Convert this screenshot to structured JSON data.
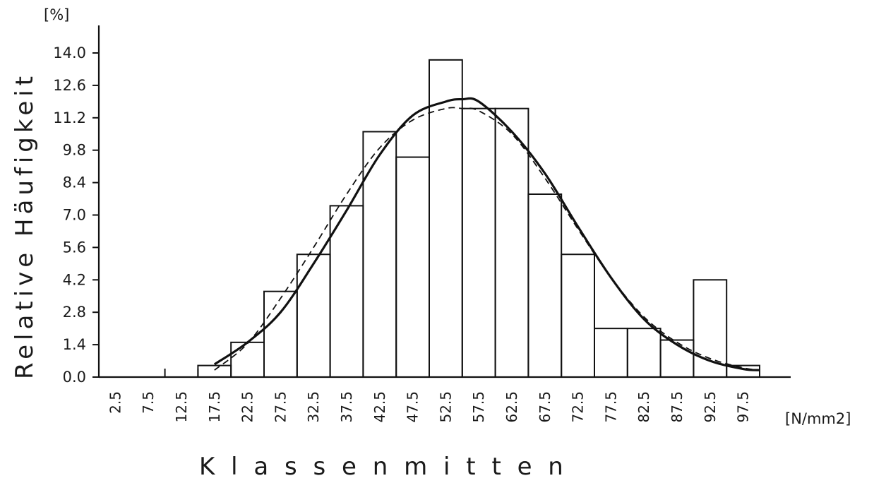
{
  "chart_data": {
    "type": "bar",
    "title": "",
    "xlabel": "K l a s s e n m i t t e n",
    "ylabel": "Relative Häufigkeit",
    "y_unit": "[%]",
    "x_unit": "[N/mm2]",
    "categories": [
      "2.5",
      "7.5",
      "12.5",
      "17.5",
      "22.5",
      "27.5",
      "32.5",
      "37.5",
      "42.5",
      "47.5",
      "52.5",
      "57.5",
      "62.5",
      "67.5",
      "72.5",
      "77.5",
      "82.5",
      "87.5",
      "92.5",
      "97.5"
    ],
    "values": [
      0.0,
      0.0,
      0.0,
      0.5,
      1.5,
      3.7,
      5.3,
      7.4,
      10.6,
      9.5,
      13.7,
      11.6,
      11.6,
      7.9,
      5.3,
      2.1,
      2.1,
      1.6,
      4.2,
      0.5
    ],
    "y_ticks": [
      "0.0",
      "1.4",
      "2.8",
      "4.2",
      "5.6",
      "7.0",
      "8.4",
      "9.8",
      "11.2",
      "12.6",
      "14.0"
    ],
    "ylim": [
      0,
      14.0
    ],
    "grid": false,
    "series": [
      {
        "style": "solid",
        "x": [
          17.5,
          22.5,
          27.5,
          32.5,
          37.5,
          42.5,
          47.5,
          52.5,
          55.0,
          57.5,
          62.5,
          67.5,
          72.5,
          77.5,
          82.5,
          87.5,
          92.5,
          97.5,
          100.0
        ],
        "values": [
          0.55,
          1.5,
          2.8,
          4.9,
          7.2,
          9.6,
          11.3,
          11.9,
          12.0,
          11.9,
          10.6,
          8.8,
          6.5,
          4.3,
          2.5,
          1.4,
          0.7,
          0.35,
          0.3
        ]
      },
      {
        "style": "dashed",
        "x": [
          17.5,
          22.5,
          27.5,
          32.5,
          37.5,
          42.5,
          47.5,
          52.5,
          55.0,
          57.5,
          62.5,
          67.5,
          72.5,
          77.5,
          82.5,
          87.5,
          92.5,
          97.5,
          100.0
        ],
        "values": [
          0.3,
          1.45,
          3.4,
          5.6,
          7.9,
          9.9,
          11.1,
          11.6,
          11.6,
          11.5,
          10.5,
          8.6,
          6.4,
          4.3,
          2.6,
          1.5,
          0.8,
          0.4,
          0.3
        ]
      }
    ]
  }
}
